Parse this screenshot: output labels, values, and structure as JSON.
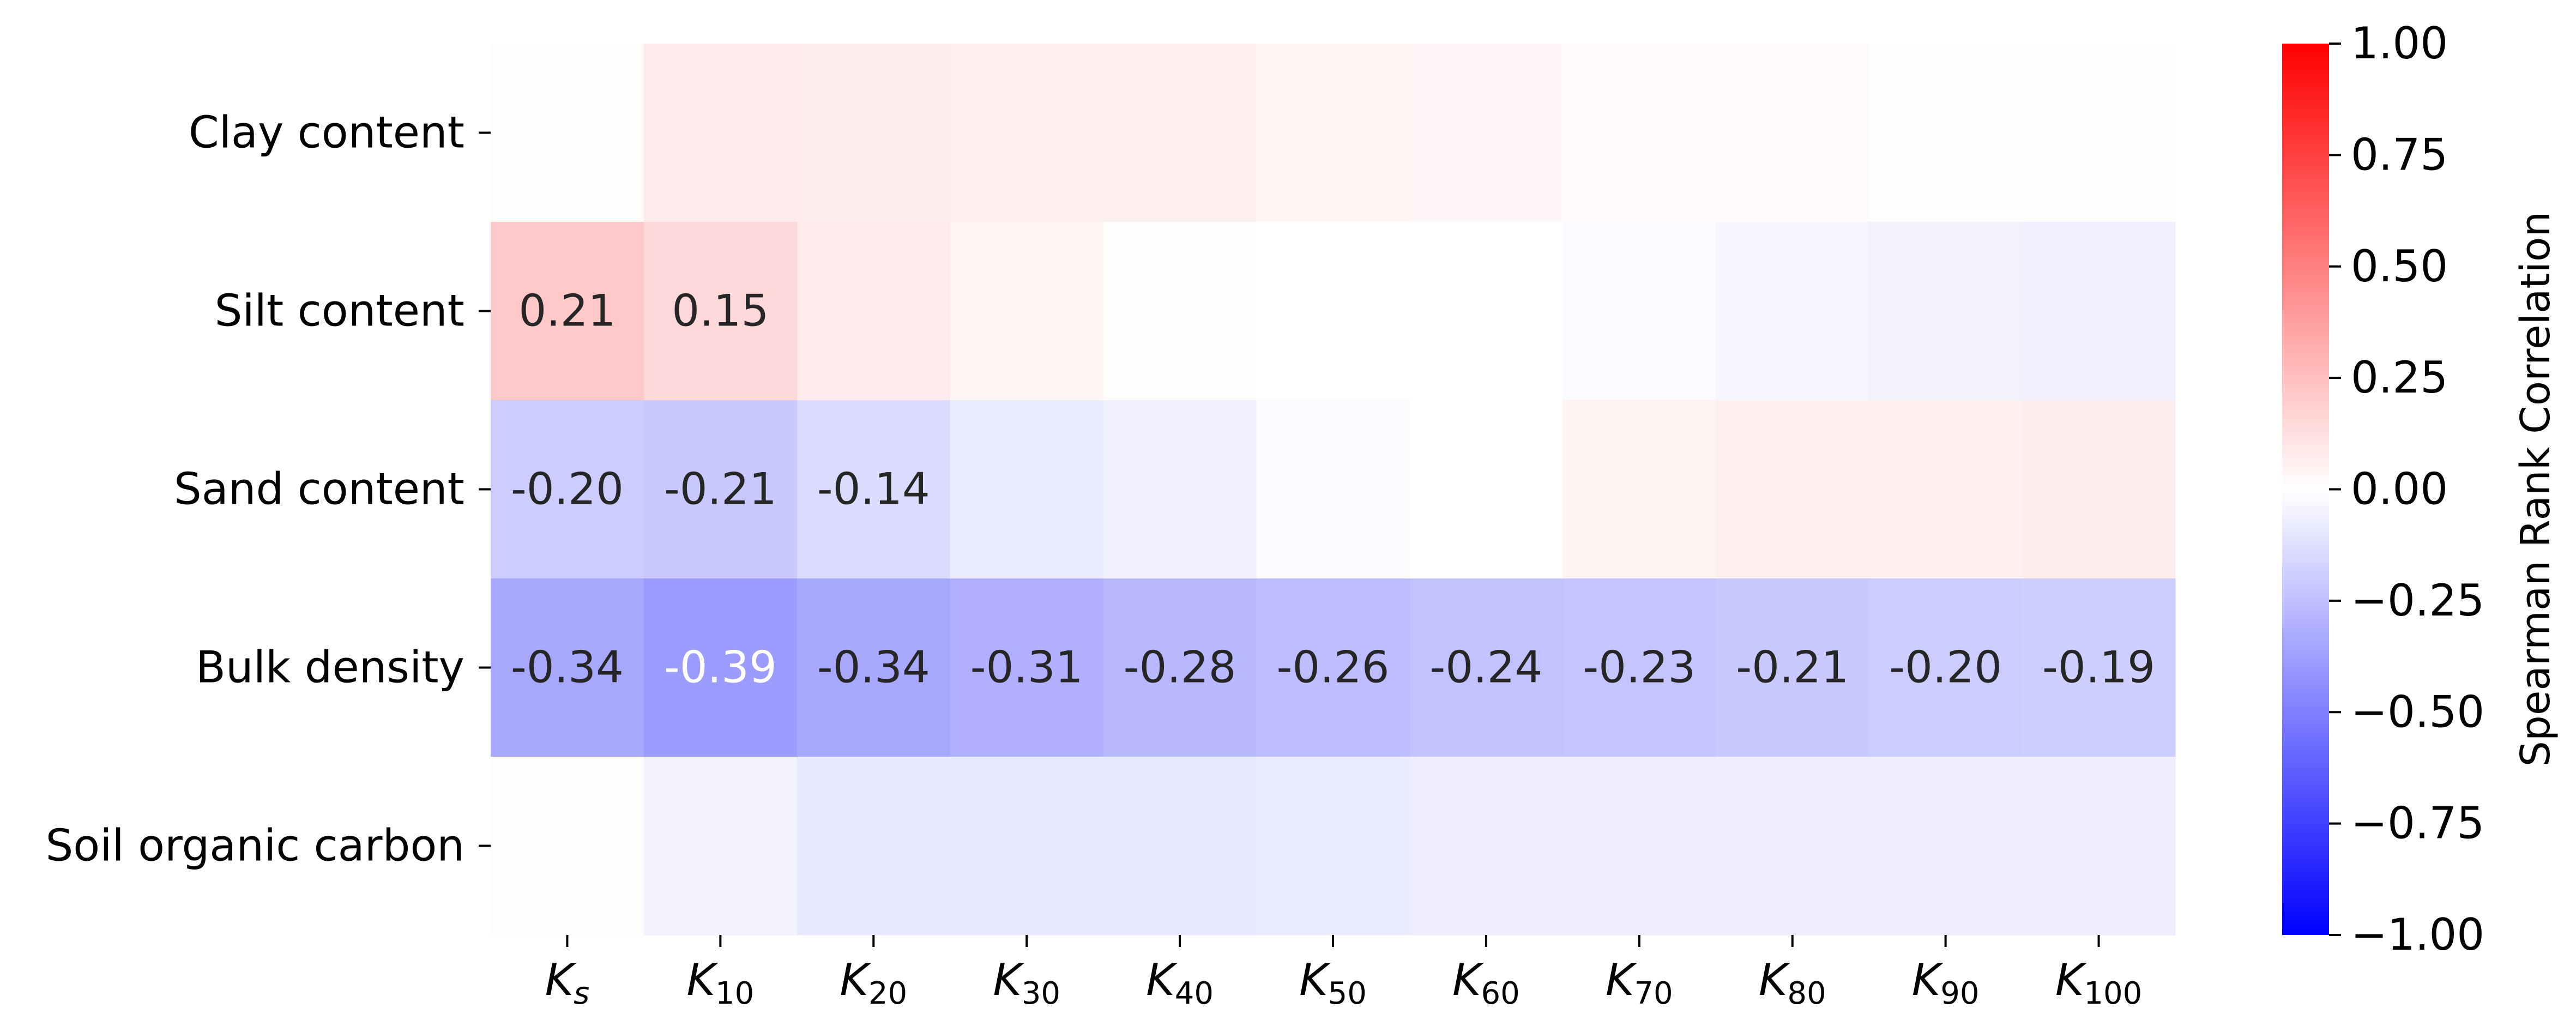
{
  "chart_data": {
    "type": "heatmap",
    "rows": [
      "Clay content",
      "Silt content",
      "Sand content",
      "Bulk density",
      "Soil organic carbon"
    ],
    "columns": [
      {
        "base": "K",
        "sub": "s"
      },
      {
        "base": "K",
        "sub": "10"
      },
      {
        "base": "K",
        "sub": "20"
      },
      {
        "base": "K",
        "sub": "30"
      },
      {
        "base": "K",
        "sub": "40"
      },
      {
        "base": "K",
        "sub": "50"
      },
      {
        "base": "K",
        "sub": "60"
      },
      {
        "base": "K",
        "sub": "70"
      },
      {
        "base": "K",
        "sub": "80"
      },
      {
        "base": "K",
        "sub": "90"
      },
      {
        "base": "K",
        "sub": "100"
      }
    ],
    "values": [
      [
        0.01,
        0.08,
        0.07,
        0.06,
        0.06,
        0.04,
        0.03,
        0.02,
        0.02,
        0.01,
        0.01
      ],
      [
        0.21,
        0.15,
        0.08,
        0.04,
        0.01,
        0.0,
        0.0,
        -0.02,
        -0.04,
        -0.05,
        -0.06
      ],
      [
        -0.2,
        -0.21,
        -0.14,
        -0.08,
        -0.06,
        -0.02,
        0.0,
        0.05,
        0.06,
        0.06,
        0.07
      ],
      [
        -0.34,
        -0.39,
        -0.34,
        -0.31,
        -0.28,
        -0.26,
        -0.24,
        -0.23,
        -0.21,
        -0.2,
        -0.19
      ],
      [
        0.01,
        -0.05,
        -0.09,
        -0.09,
        -0.09,
        -0.08,
        -0.07,
        -0.07,
        -0.07,
        -0.07,
        -0.07
      ]
    ],
    "labels": [
      [
        "",
        "",
        "",
        "",
        "",
        "",
        "",
        "",
        "",
        "",
        ""
      ],
      [
        "0.21",
        "0.15",
        "",
        "",
        "",
        "",
        "",
        "",
        "",
        "",
        ""
      ],
      [
        "-0.20",
        "-0.21",
        "-0.14",
        "",
        "",
        "",
        "",
        "",
        "",
        "",
        ""
      ],
      [
        "-0.34",
        "-0.39",
        "-0.34",
        "-0.31",
        "-0.28",
        "-0.26",
        "-0.24",
        "-0.23",
        "-0.21",
        "-0.20",
        "-0.19"
      ],
      [
        "",
        "",
        "",
        "",
        "",
        "",
        "",
        "",
        "",
        "",
        ""
      ]
    ],
    "colorbar": {
      "label": "Spearman Rank Correlation",
      "range": [
        -1.0,
        1.0
      ],
      "ticks": [
        1.0,
        0.75,
        0.5,
        0.25,
        0.0,
        -0.25,
        -0.5,
        -0.75,
        -1.0
      ],
      "tick_labels": [
        "1.00",
        "0.75",
        "0.50",
        "0.25",
        "0.00",
        "−0.25",
        "−0.50",
        "−0.75",
        "−1.00"
      ],
      "colormap": "bwr",
      "color_low": "#0000ff",
      "color_mid": "#ffffff",
      "color_high": "#ff0000"
    },
    "text_color_dark": "#262626",
    "text_color_light": "#ffffff"
  }
}
